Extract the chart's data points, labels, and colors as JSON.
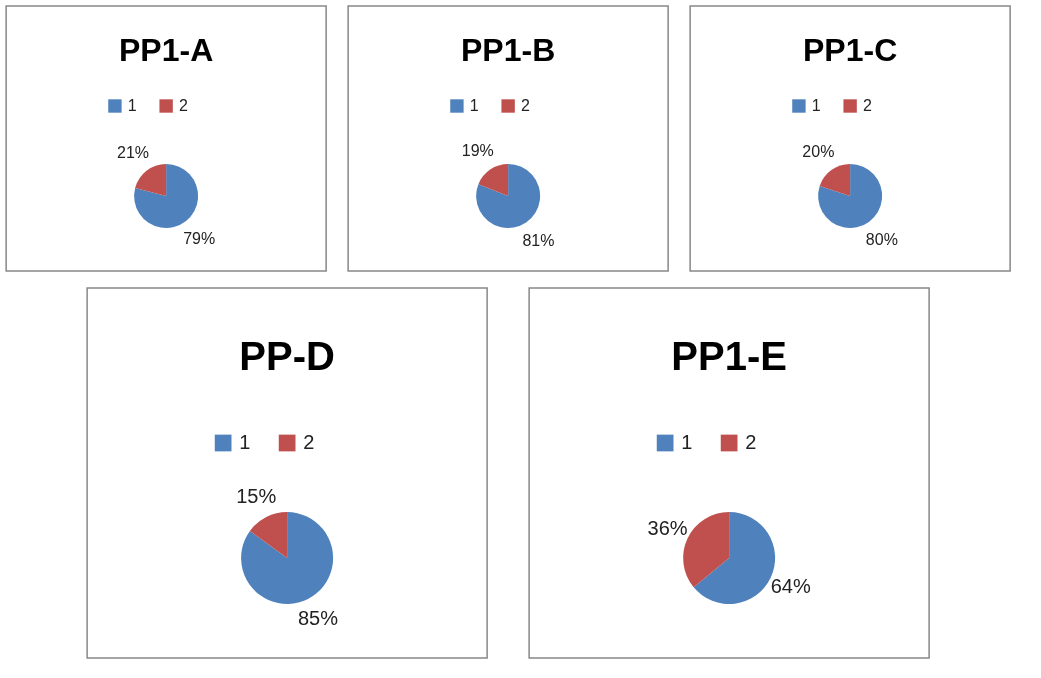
{
  "chart_data": [
    {
      "type": "pie",
      "title": "PP1-A",
      "categories": [
        "1",
        "2"
      ],
      "values": [
        79,
        21
      ],
      "colors": [
        "#4f81bd",
        "#c0504d"
      ],
      "value_labels": [
        "79%",
        "21%"
      ],
      "legend": "top"
    },
    {
      "type": "pie",
      "title": "PP1-B",
      "categories": [
        "1",
        "2"
      ],
      "values": [
        81,
        19
      ],
      "colors": [
        "#4f81bd",
        "#c0504d"
      ],
      "value_labels": [
        "81%",
        "19%"
      ],
      "legend": "top"
    },
    {
      "type": "pie",
      "title": "PP1-C",
      "categories": [
        "1",
        "2"
      ],
      "values": [
        80,
        20
      ],
      "colors": [
        "#4f81bd",
        "#c0504d"
      ],
      "value_labels": [
        "80%",
        "20%"
      ],
      "legend": "top"
    },
    {
      "type": "pie",
      "title": "PP-D",
      "categories": [
        "1",
        "2"
      ],
      "values": [
        85,
        15
      ],
      "colors": [
        "#4f81bd",
        "#c0504d"
      ],
      "value_labels": [
        "85%",
        "15%"
      ],
      "legend": "top"
    },
    {
      "type": "pie",
      "title": "PP1-E",
      "categories": [
        "1",
        "2"
      ],
      "values": [
        64,
        36
      ],
      "colors": [
        "#4f81bd",
        "#c0504d"
      ],
      "value_labels": [
        "64%",
        "36%"
      ],
      "legend": "top"
    }
  ]
}
